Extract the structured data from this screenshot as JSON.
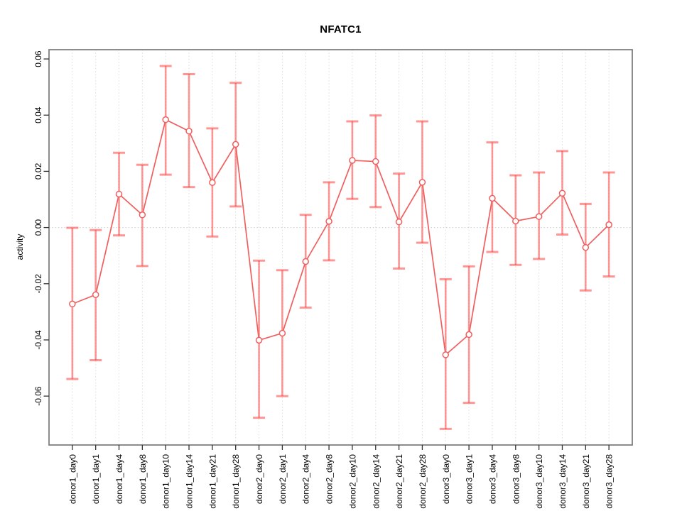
{
  "chart_data": {
    "type": "line",
    "subtype": "points-with-error-bars",
    "title": "NFATC1",
    "xlabel": "",
    "ylabel": "activity",
    "legend": "none",
    "categories": [
      "donor1_day0",
      "donor1_day1",
      "donor1_day4",
      "donor1_day8",
      "donor1_day10",
      "donor1_day14",
      "donor1_day21",
      "donor1_day28",
      "donor2_day0",
      "donor2_day1",
      "donor2_day4",
      "donor2_day8",
      "donor2_day10",
      "donor2_day14",
      "donor2_day21",
      "donor2_day28",
      "donor3_day0",
      "donor3_day1",
      "donor3_day4",
      "donor3_day8",
      "donor3_day10",
      "donor3_day14",
      "donor3_day21",
      "donor3_day28"
    ],
    "series": [
      {
        "name": "NFATC1 activity",
        "means": [
          -0.0272,
          -0.0239,
          0.0119,
          0.0045,
          0.0384,
          0.0343,
          0.016,
          0.0296,
          -0.0401,
          -0.0376,
          -0.0121,
          0.0022,
          0.0239,
          0.0235,
          0.002,
          0.0161,
          -0.0453,
          -0.0381,
          0.0104,
          0.0023,
          0.0039,
          0.0122,
          -0.0071,
          0.001
        ],
        "upper": [
          -0.0001,
          -0.0009,
          0.0266,
          0.0223,
          0.0575,
          0.0546,
          0.0353,
          0.0515,
          -0.0118,
          -0.0152,
          0.0045,
          0.0161,
          0.0378,
          0.0399,
          0.0192,
          0.0378,
          -0.0184,
          -0.0138,
          0.0303,
          0.0186,
          0.0196,
          0.0272,
          0.0084,
          0.0196
        ],
        "lower": [
          -0.0539,
          -0.0472,
          -0.0028,
          -0.0137,
          0.0188,
          0.0144,
          -0.0032,
          0.0075,
          -0.0677,
          -0.06,
          -0.0285,
          -0.0117,
          0.0102,
          0.0073,
          -0.0146,
          -0.0054,
          -0.0717,
          -0.0624,
          -0.0087,
          -0.0133,
          -0.0112,
          -0.0025,
          -0.0224,
          -0.0174
        ]
      }
    ],
    "yticks": [
      0.06,
      0.04,
      0.02,
      0,
      -0.02,
      -0.04,
      -0.06
    ],
    "ylim": [
      -0.0774,
      0.0633
    ],
    "grid": {
      "vertical_dotted": true,
      "horizontal_zero_line_dotted": true
    },
    "colors": {
      "series": "#f05f5f",
      "point_fill": "#ffffff",
      "error_bar": "rgba(255,64,64,0.55)",
      "grid": "#dbdbdb",
      "zero_line": "#cccccc",
      "box": "#808080",
      "tick": "#333333",
      "text": "#000000"
    }
  }
}
